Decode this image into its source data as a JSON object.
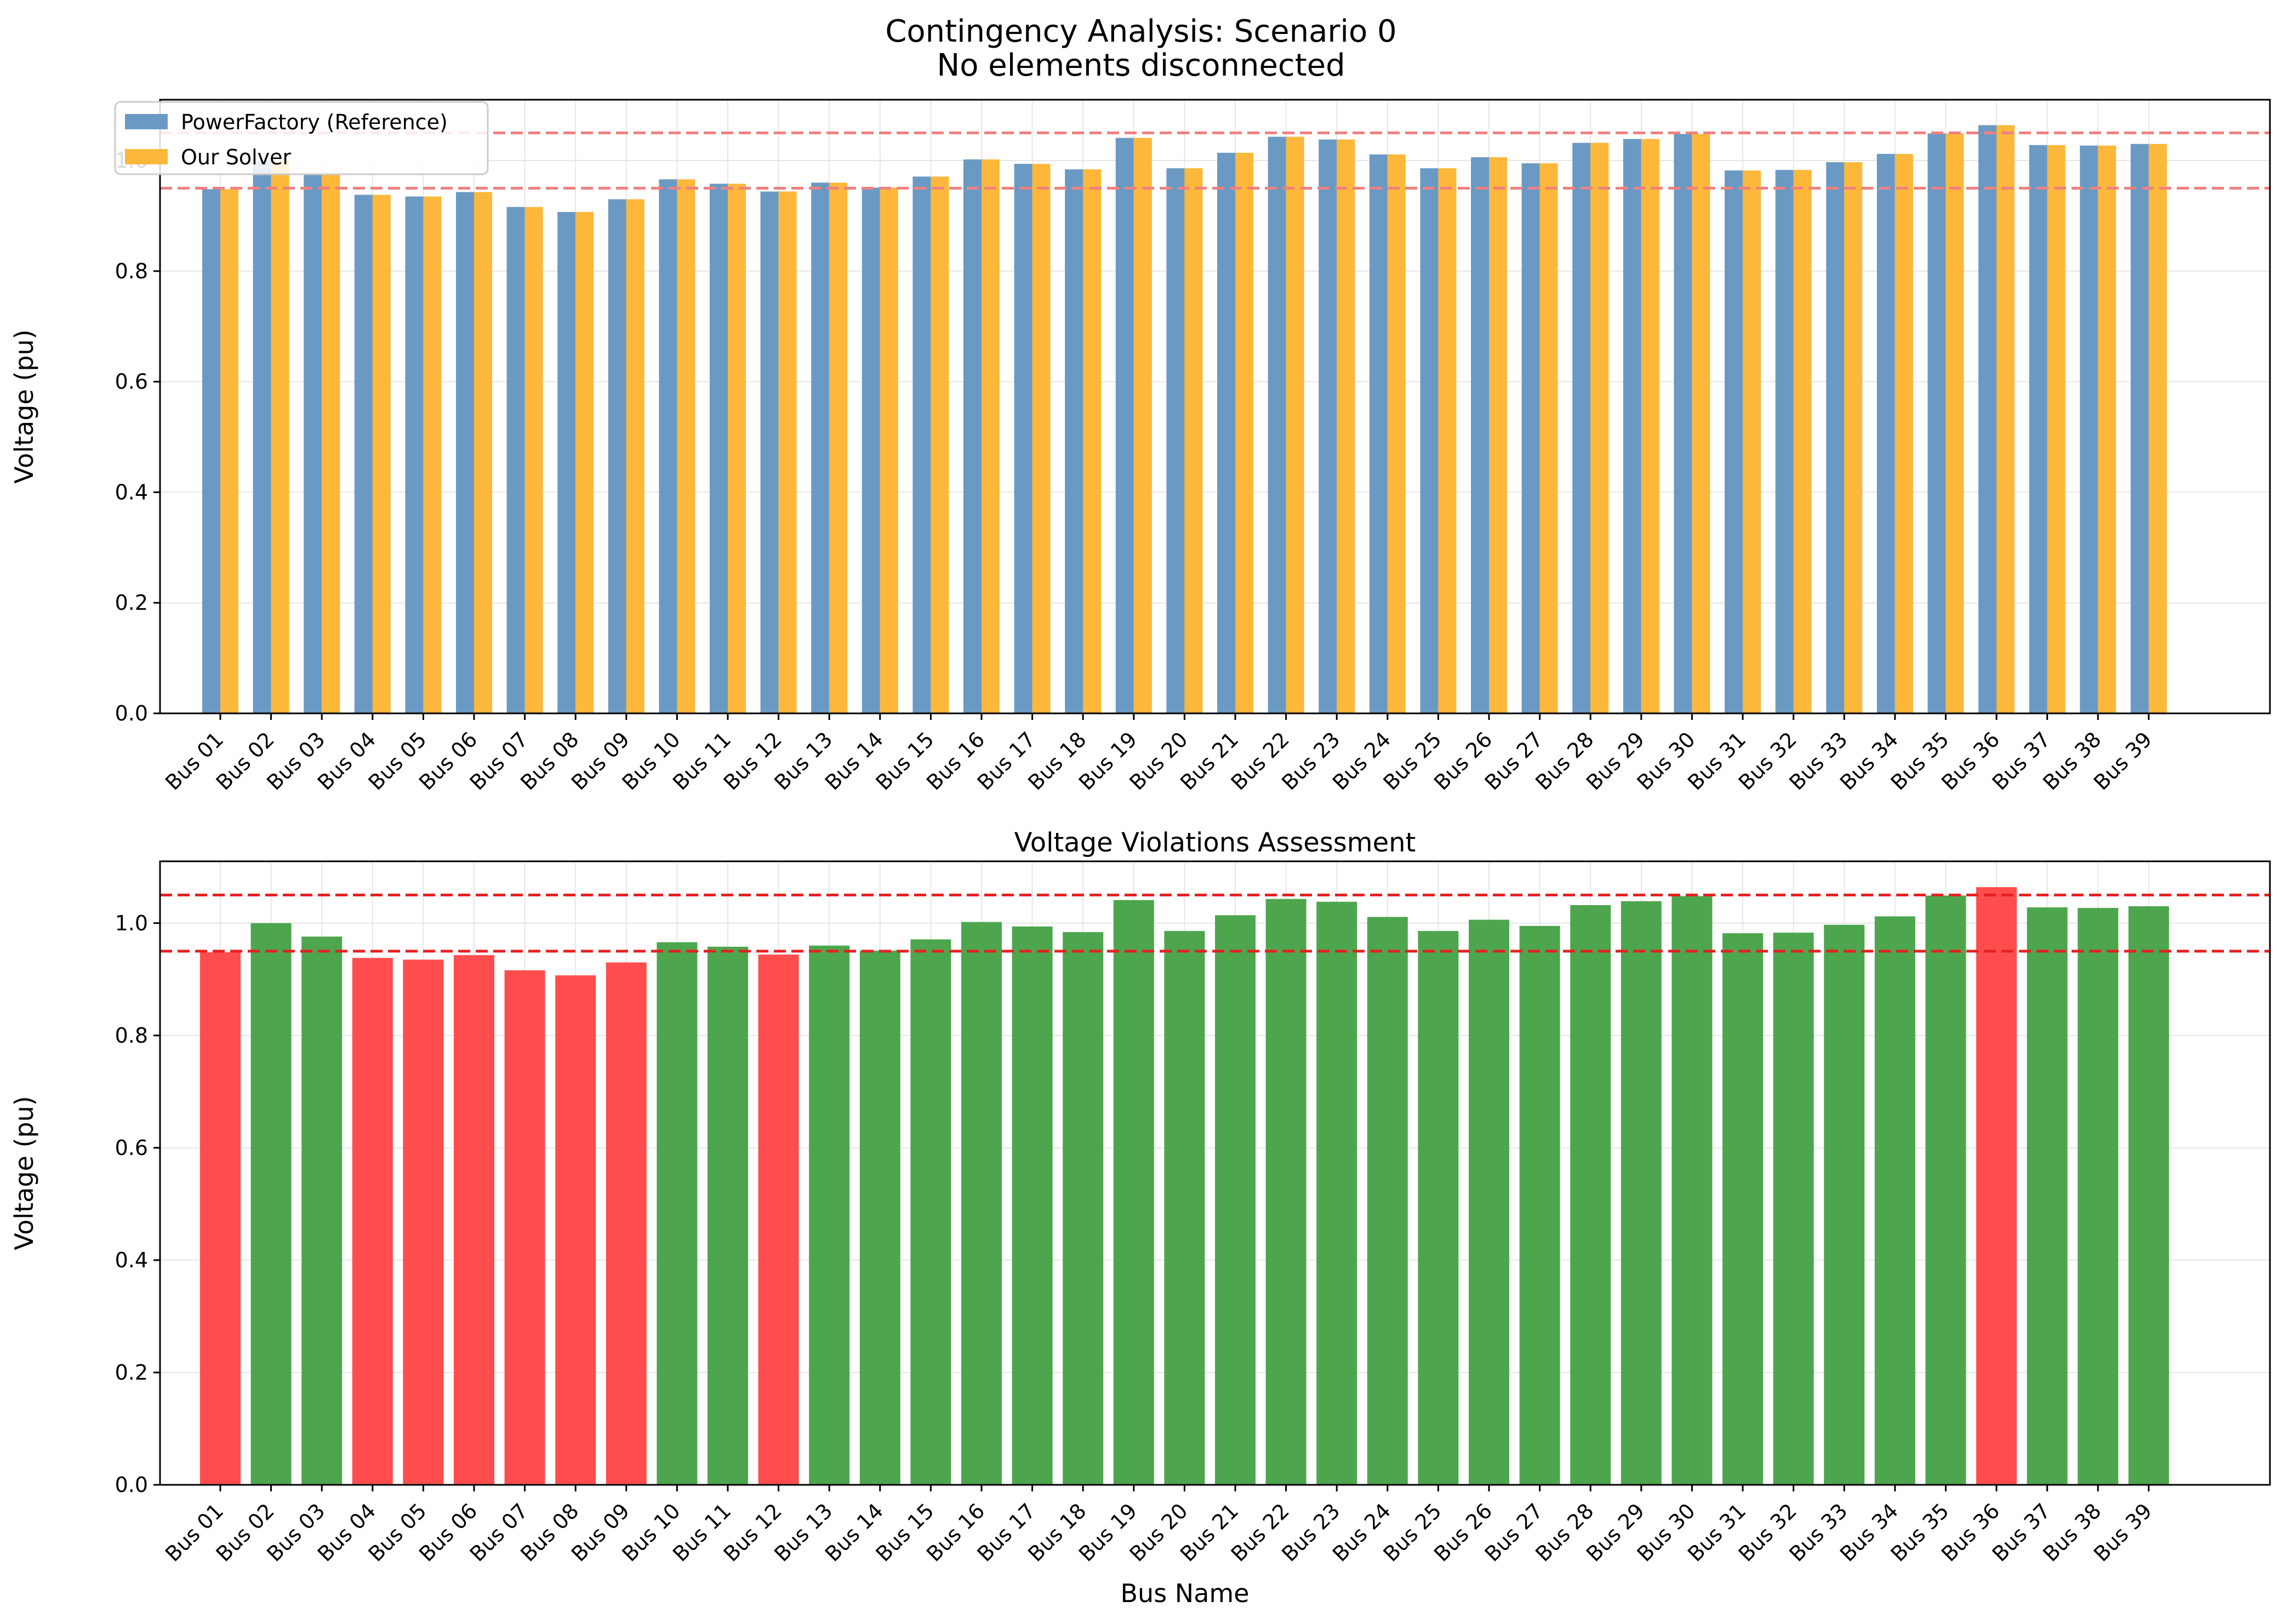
{
  "figure": {
    "title_line1": "Contingency Analysis: Scenario 0",
    "title_line2": "No elements disconnected",
    "xlabel": "Bus Name"
  },
  "chart_data": [
    {
      "type": "bar",
      "title": "",
      "ylabel": "Voltage (pu)",
      "xlabel": "",
      "ylim": [
        0,
        1.11
      ],
      "yticks": [
        "0.0",
        "0.2",
        "0.4",
        "0.6",
        "0.8",
        "1.0"
      ],
      "grid": true,
      "legend_position": "top-left",
      "categories": [
        "Bus 01",
        "Bus 02",
        "Bus 03",
        "Bus 04",
        "Bus 05",
        "Bus 06",
        "Bus 07",
        "Bus 08",
        "Bus 09",
        "Bus 10",
        "Bus 11",
        "Bus 12",
        "Bus 13",
        "Bus 14",
        "Bus 15",
        "Bus 16",
        "Bus 17",
        "Bus 18",
        "Bus 19",
        "Bus 20",
        "Bus 21",
        "Bus 22",
        "Bus 23",
        "Bus 24",
        "Bus 25",
        "Bus 26",
        "Bus 27",
        "Bus 28",
        "Bus 29",
        "Bus 30",
        "Bus 31",
        "Bus 32",
        "Bus 33",
        "Bus 34",
        "Bus 35",
        "Bus 36",
        "Bus 37",
        "Bus 38",
        "Bus 39"
      ],
      "series": [
        {
          "name": "PowerFactory (Reference)",
          "color": "#6a9ac4",
          "values": [
            0.948,
            1.0,
            0.976,
            0.938,
            0.935,
            0.943,
            0.916,
            0.907,
            0.93,
            0.966,
            0.958,
            0.944,
            0.96,
            0.951,
            0.971,
            1.002,
            0.994,
            0.984,
            1.041,
            0.986,
            1.014,
            1.043,
            1.038,
            1.011,
            0.986,
            1.006,
            0.995,
            1.032,
            1.039,
            1.048,
            0.982,
            0.983,
            0.997,
            1.012,
            1.049,
            1.064,
            1.028,
            1.027,
            1.03
          ]
        },
        {
          "name": "Our Solver",
          "color": "#fdb73a",
          "values": [
            0.948,
            1.0,
            0.976,
            0.938,
            0.935,
            0.943,
            0.916,
            0.907,
            0.93,
            0.966,
            0.958,
            0.944,
            0.96,
            0.951,
            0.971,
            1.002,
            0.994,
            0.984,
            1.041,
            0.986,
            1.014,
            1.043,
            1.038,
            1.011,
            0.986,
            1.006,
            0.995,
            1.032,
            1.039,
            1.048,
            0.982,
            0.983,
            0.997,
            1.012,
            1.049,
            1.064,
            1.028,
            1.027,
            1.03
          ]
        }
      ],
      "reference_lines": [
        0.95,
        1.05
      ],
      "reference_line_color": "#f08080"
    },
    {
      "type": "bar",
      "title": "Voltage Violations Assessment",
      "ylabel": "Voltage (pu)",
      "ylim": [
        0,
        1.11
      ],
      "yticks": [
        "0.0",
        "0.2",
        "0.4",
        "0.6",
        "0.8",
        "1.0"
      ],
      "grid": true,
      "categories": [
        "Bus 01",
        "Bus 02",
        "Bus 03",
        "Bus 04",
        "Bus 05",
        "Bus 06",
        "Bus 07",
        "Bus 08",
        "Bus 09",
        "Bus 10",
        "Bus 11",
        "Bus 12",
        "Bus 13",
        "Bus 14",
        "Bus 15",
        "Bus 16",
        "Bus 17",
        "Bus 18",
        "Bus 19",
        "Bus 20",
        "Bus 21",
        "Bus 22",
        "Bus 23",
        "Bus 24",
        "Bus 25",
        "Bus 26",
        "Bus 27",
        "Bus 28",
        "Bus 29",
        "Bus 30",
        "Bus 31",
        "Bus 32",
        "Bus 33",
        "Bus 34",
        "Bus 35",
        "Bus 36",
        "Bus 37",
        "Bus 38",
        "Bus 39"
      ],
      "values": [
        0.948,
        1.0,
        0.976,
        0.938,
        0.935,
        0.943,
        0.916,
        0.907,
        0.93,
        0.966,
        0.958,
        0.944,
        0.96,
        0.951,
        0.971,
        1.002,
        0.994,
        0.984,
        1.041,
        0.986,
        1.014,
        1.043,
        1.038,
        1.011,
        0.986,
        1.006,
        0.995,
        1.032,
        1.039,
        1.048,
        0.982,
        0.983,
        0.997,
        1.012,
        1.049,
        1.064,
        1.028,
        1.027,
        1.03
      ],
      "colors": {
        "violation": "#ff4d4d",
        "ok": "#4da64d"
      },
      "bar_status": [
        "violation",
        "ok",
        "ok",
        "violation",
        "violation",
        "violation",
        "violation",
        "violation",
        "violation",
        "ok",
        "ok",
        "violation",
        "ok",
        "ok",
        "ok",
        "ok",
        "ok",
        "ok",
        "ok",
        "ok",
        "ok",
        "ok",
        "ok",
        "ok",
        "ok",
        "ok",
        "ok",
        "ok",
        "ok",
        "ok",
        "ok",
        "ok",
        "ok",
        "ok",
        "ok",
        "violation",
        "ok",
        "ok",
        "ok"
      ],
      "reference_lines": [
        0.95,
        1.05
      ],
      "reference_line_color": "#e62020"
    }
  ]
}
